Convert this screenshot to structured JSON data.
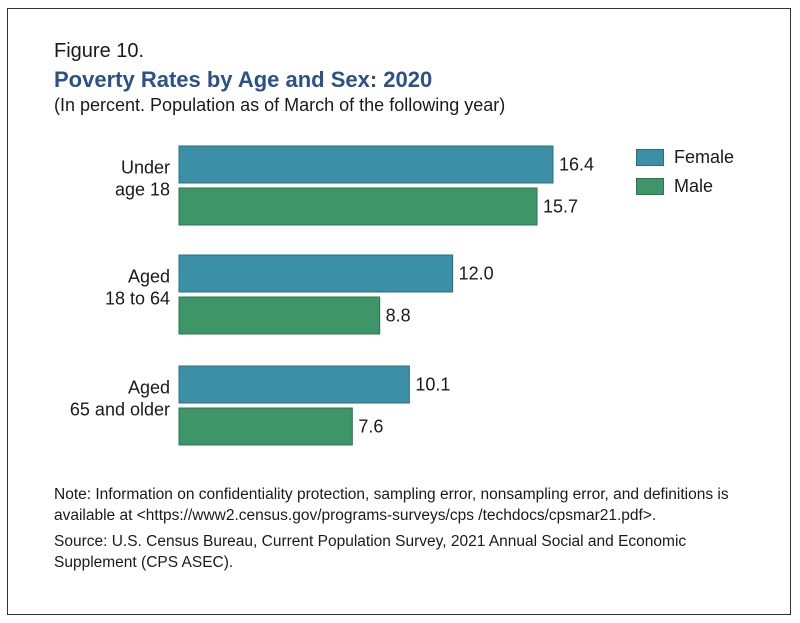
{
  "figure": {
    "label": "Figure 10.",
    "title": "Poverty Rates by Age and Sex: 2020",
    "subtitle": "(In percent. Population as of March of the following year)"
  },
  "colors": {
    "female": "#3b8fa6",
    "male": "#3e9568",
    "title": "#2a5189"
  },
  "legend": {
    "items": [
      {
        "label": "Female",
        "color": "#3b8fa6"
      },
      {
        "label": "Male",
        "color": "#3e9568"
      }
    ],
    "placement": "top-right"
  },
  "chart_data": {
    "type": "bar",
    "orientation": "horizontal",
    "categories": [
      [
        "Under",
        "age 18"
      ],
      [
        "Aged",
        "18 to 64"
      ],
      [
        "Aged",
        "65 and older"
      ]
    ],
    "series": [
      {
        "name": "Female",
        "values": [
          16.4,
          12.0,
          10.1
        ],
        "labels": [
          "16.4",
          "12.0",
          "10.1"
        ]
      },
      {
        "name": "Male",
        "values": [
          15.7,
          8.8,
          7.6
        ],
        "labels": [
          "15.7",
          "8.8",
          "7.6"
        ]
      }
    ],
    "xlim": [
      0,
      16.4
    ],
    "grid": false,
    "axes_visible": false
  },
  "footer": {
    "note": "Note: Information on confidentiality protection, sampling error, nonsampling error, and definitions is available at <https://www2.census.gov/programs-surveys/cps /techdocs/cpsmar21.pdf>.",
    "source": "Source: U.S. Census Bureau, Current Population Survey, 2021 Annual Social and Economic Supplement (CPS ASEC)."
  }
}
